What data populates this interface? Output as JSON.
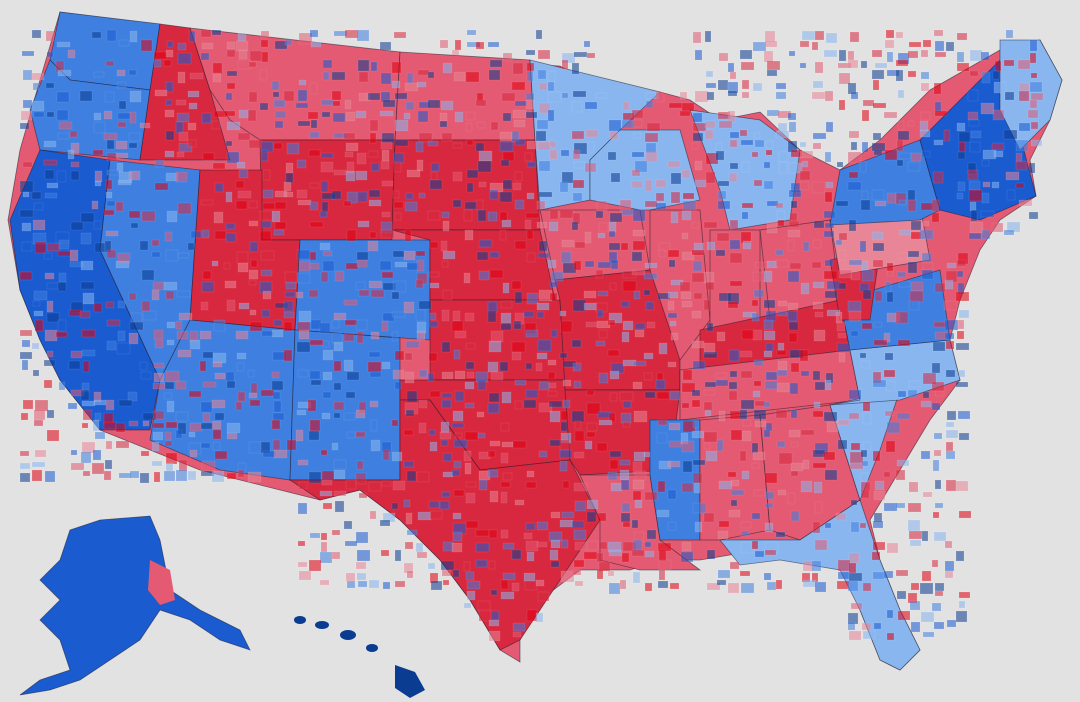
{
  "map": {
    "background": "#e2e2e2",
    "palette": {
      "dem_strong": "#0a3c91",
      "dem_medium": "#1a5bd0",
      "dem_light": "#3f7fe0",
      "dem_pale": "#8ab6f0",
      "rep_pale": "#e88596",
      "rep_light": "#e35a72",
      "rep_medium": "#d8283f",
      "rep_strong": "#e00010"
    },
    "regions": [
      {
        "name": "washington",
        "lean": "dem_light"
      },
      {
        "name": "oregon",
        "lean": "dem_light"
      },
      {
        "name": "california",
        "lean": "dem_medium"
      },
      {
        "name": "nevada",
        "lean": "dem_light"
      },
      {
        "name": "idaho",
        "lean": "rep_medium"
      },
      {
        "name": "montana",
        "lean": "rep_light"
      },
      {
        "name": "wyoming",
        "lean": "rep_medium"
      },
      {
        "name": "utah",
        "lean": "rep_medium"
      },
      {
        "name": "arizona",
        "lean": "dem_light"
      },
      {
        "name": "colorado",
        "lean": "dem_light"
      },
      {
        "name": "new-mexico",
        "lean": "dem_light"
      },
      {
        "name": "north-dakota",
        "lean": "rep_light"
      },
      {
        "name": "south-dakota",
        "lean": "rep_medium"
      },
      {
        "name": "nebraska",
        "lean": "rep_medium"
      },
      {
        "name": "kansas",
        "lean": "rep_medium"
      },
      {
        "name": "oklahoma",
        "lean": "rep_medium"
      },
      {
        "name": "texas",
        "lean": "rep_medium"
      },
      {
        "name": "minnesota",
        "lean": "dem_pale"
      },
      {
        "name": "iowa",
        "lean": "rep_light"
      },
      {
        "name": "missouri",
        "lean": "rep_medium"
      },
      {
        "name": "arkansas",
        "lean": "rep_medium"
      },
      {
        "name": "louisiana",
        "lean": "rep_light"
      },
      {
        "name": "wisconsin",
        "lean": "dem_pale"
      },
      {
        "name": "illinois",
        "lean": "rep_light"
      },
      {
        "name": "michigan",
        "lean": "dem_pale"
      },
      {
        "name": "indiana",
        "lean": "rep_light"
      },
      {
        "name": "ohio",
        "lean": "rep_light"
      },
      {
        "name": "kentucky",
        "lean": "rep_medium"
      },
      {
        "name": "tennessee",
        "lean": "rep_light"
      },
      {
        "name": "mississippi",
        "lean": "dem_light"
      },
      {
        "name": "alabama",
        "lean": "rep_light"
      },
      {
        "name": "georgia",
        "lean": "rep_light"
      },
      {
        "name": "florida",
        "lean": "dem_pale"
      },
      {
        "name": "south-carolina",
        "lean": "dem_pale"
      },
      {
        "name": "north-carolina",
        "lean": "dem_pale"
      },
      {
        "name": "virginia",
        "lean": "dem_light"
      },
      {
        "name": "west-virginia",
        "lean": "rep_medium"
      },
      {
        "name": "pennsylvania",
        "lean": "rep_pale"
      },
      {
        "name": "new-york",
        "lean": "dem_light"
      },
      {
        "name": "new-england",
        "lean": "dem_medium"
      },
      {
        "name": "maine",
        "lean": "dem_pale"
      },
      {
        "name": "alaska",
        "lean": "dem_medium"
      },
      {
        "name": "hawaii",
        "lean": "dem_strong"
      }
    ]
  }
}
